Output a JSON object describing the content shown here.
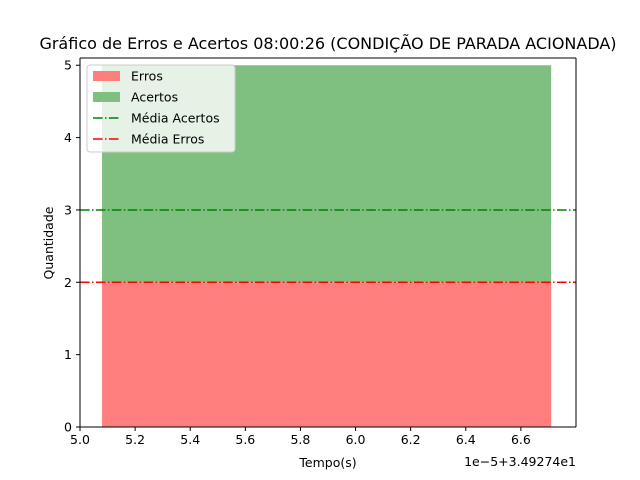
{
  "chart_data": {
    "type": "area",
    "title": "Gráfico de Erros e Acertos 08:00:26 (CONDIÇÃO DE PARADA ACIONADA)",
    "xlabel": "Tempo(s)",
    "ylabel": "Quantidade",
    "x_offset_label": "1e−5+3.49274e1",
    "xlim": [
      5.0,
      6.8
    ],
    "ylim": [
      0,
      5.1
    ],
    "x_ticks": [
      5.0,
      5.2,
      5.4,
      5.6,
      5.8,
      6.0,
      6.2,
      6.4,
      6.6
    ],
    "x_tick_labels": [
      "5.0",
      "5.2",
      "5.4",
      "5.6",
      "5.8",
      "6.0",
      "6.2",
      "6.4",
      "6.6"
    ],
    "y_ticks": [
      0,
      1,
      2,
      3,
      4,
      5
    ],
    "y_tick_labels": [
      "0",
      "1",
      "2",
      "3",
      "4",
      "5"
    ],
    "grid": false,
    "legend_position": "top-left",
    "x": [
      5.08,
      6.71
    ],
    "series": [
      {
        "name": "Erros",
        "kind": "area",
        "color": "#ff7f7f",
        "values": [
          2,
          2
        ],
        "baseline": [
          0,
          0
        ]
      },
      {
        "name": "Acertos",
        "kind": "area",
        "color": "#7fbf7f",
        "values": [
          5,
          5
        ],
        "baseline": [
          2,
          2
        ]
      },
      {
        "name": "Média Acertos",
        "kind": "hline",
        "color": "#008000",
        "value": 3
      },
      {
        "name": "Média Erros",
        "kind": "hline",
        "color": "#ff0000",
        "value": 2
      }
    ]
  }
}
